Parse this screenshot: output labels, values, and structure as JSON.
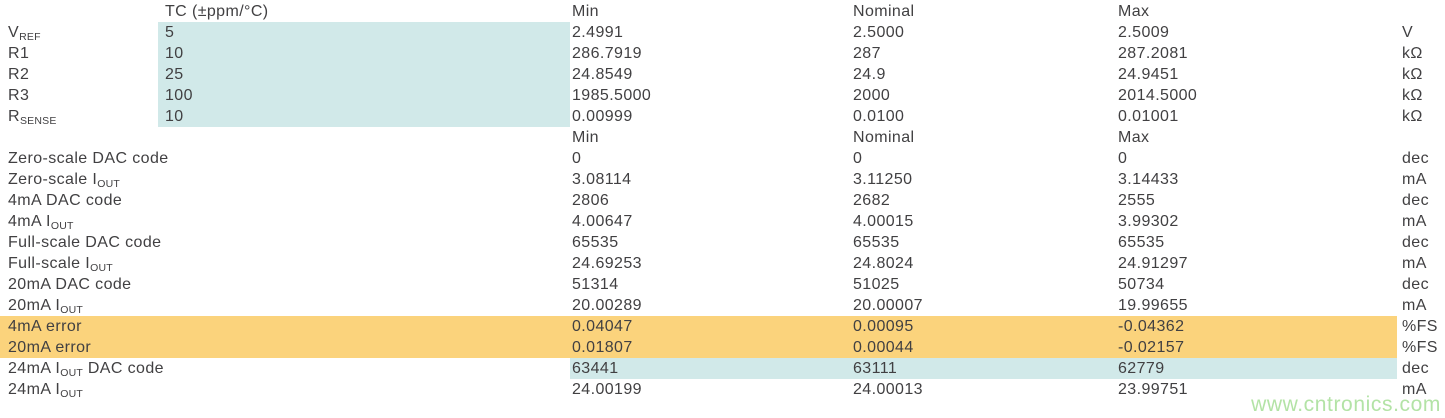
{
  "colors": {
    "background": "#ffffff",
    "text": "#414042",
    "highlight_teal": "#d1e9e9",
    "highlight_orange": "#fbd37c"
  },
  "watermark": {
    "text": "www.cntronics.com",
    "color": "#b3e3a6"
  },
  "chart_data": {
    "type": "table",
    "header1": {
      "tc": "TC (±ppm/°C)",
      "min": "Min",
      "nominal": "Nominal",
      "max": "Max"
    },
    "header2": {
      "min": "Min",
      "nominal": "Nominal",
      "max": "Max"
    },
    "section1": {
      "rows": [
        {
          "label_pre": "V",
          "label_sub": "REF",
          "tc": "5",
          "min": "2.4991",
          "nominal": "2.5000",
          "max": "2.5009",
          "unit": "V",
          "highlight": "tc-teal"
        },
        {
          "label_pre": "R1",
          "tc": "10",
          "min": "286.7919",
          "nominal": "287",
          "max": "287.2081",
          "unit": "kΩ",
          "highlight": "tc-teal"
        },
        {
          "label_pre": "R2",
          "tc": "25",
          "min": "24.8549",
          "nominal": "24.9",
          "max": "24.9451",
          "unit": "kΩ",
          "highlight": "tc-teal"
        },
        {
          "label_pre": "R3",
          "tc": "100",
          "min": "1985.5000",
          "nominal": "2000",
          "max": "2014.5000",
          "unit": "kΩ",
          "highlight": "tc-teal"
        },
        {
          "label_pre": "R",
          "label_sub": "SENSE",
          "tc": "10",
          "min": "0.00999",
          "nominal": "0.0100",
          "max": "0.01001",
          "unit": "kΩ",
          "highlight": "tc-teal"
        }
      ]
    },
    "section2": {
      "rows": [
        {
          "label_pre": "Zero-scale DAC code",
          "min": "0",
          "nominal": "0",
          "max": "0",
          "unit": "dec",
          "highlight": "none"
        },
        {
          "label_pre": "Zero-scale I",
          "label_sub": "OUT",
          "min": "3.08114",
          "nominal": "3.11250",
          "max": "3.14433",
          "unit": "mA",
          "highlight": "none"
        },
        {
          "label_pre": "4mA DAC code",
          "min": "2806",
          "nominal": "2682",
          "max": "2555",
          "unit": "dec",
          "highlight": "none"
        },
        {
          "label_pre": "4mA I",
          "label_sub": "OUT",
          "min": "4.00647",
          "nominal": "4.00015",
          "max": "3.99302",
          "unit": "mA",
          "highlight": "none"
        },
        {
          "label_pre": "Full-scale DAC code",
          "min": "65535",
          "nominal": "65535",
          "max": "65535",
          "unit": "dec",
          "highlight": "none"
        },
        {
          "label_pre": "Full-scale I",
          "label_sub": "OUT",
          "min": "24.69253",
          "nominal": "24.8024",
          "max": "24.91297",
          "unit": "mA",
          "highlight": "none"
        },
        {
          "label_pre": "20mA DAC code",
          "min": "51314",
          "nominal": "51025",
          "max": "50734",
          "unit": "dec",
          "highlight": "none"
        },
        {
          "label_pre": "20mA I",
          "label_sub": "OUT",
          "min": "20.00289",
          "nominal": "20.00007",
          "max": "19.99655",
          "unit": "mA",
          "highlight": "none"
        },
        {
          "label_pre": "4mA error",
          "min": "0.04047",
          "nominal": "0.00095",
          "max": "-0.04362",
          "unit": "%FS",
          "highlight": "orange-row"
        },
        {
          "label_pre": "20mA error",
          "min": "0.01807",
          "nominal": "0.00044",
          "max": "-0.02157",
          "unit": "%FS",
          "highlight": "orange-row"
        },
        {
          "label_pre": "24mA I",
          "label_sub": "OUT",
          "label_post": " DAC code",
          "min": "63441",
          "nominal": "63111",
          "max": "62779",
          "unit": "dec",
          "highlight": "values-teal"
        },
        {
          "label_pre": "24mA I",
          "label_sub": "OUT",
          "min": "24.00199",
          "nominal": "24.00013",
          "max": "23.99751",
          "unit": "mA",
          "highlight": "none"
        }
      ]
    }
  }
}
